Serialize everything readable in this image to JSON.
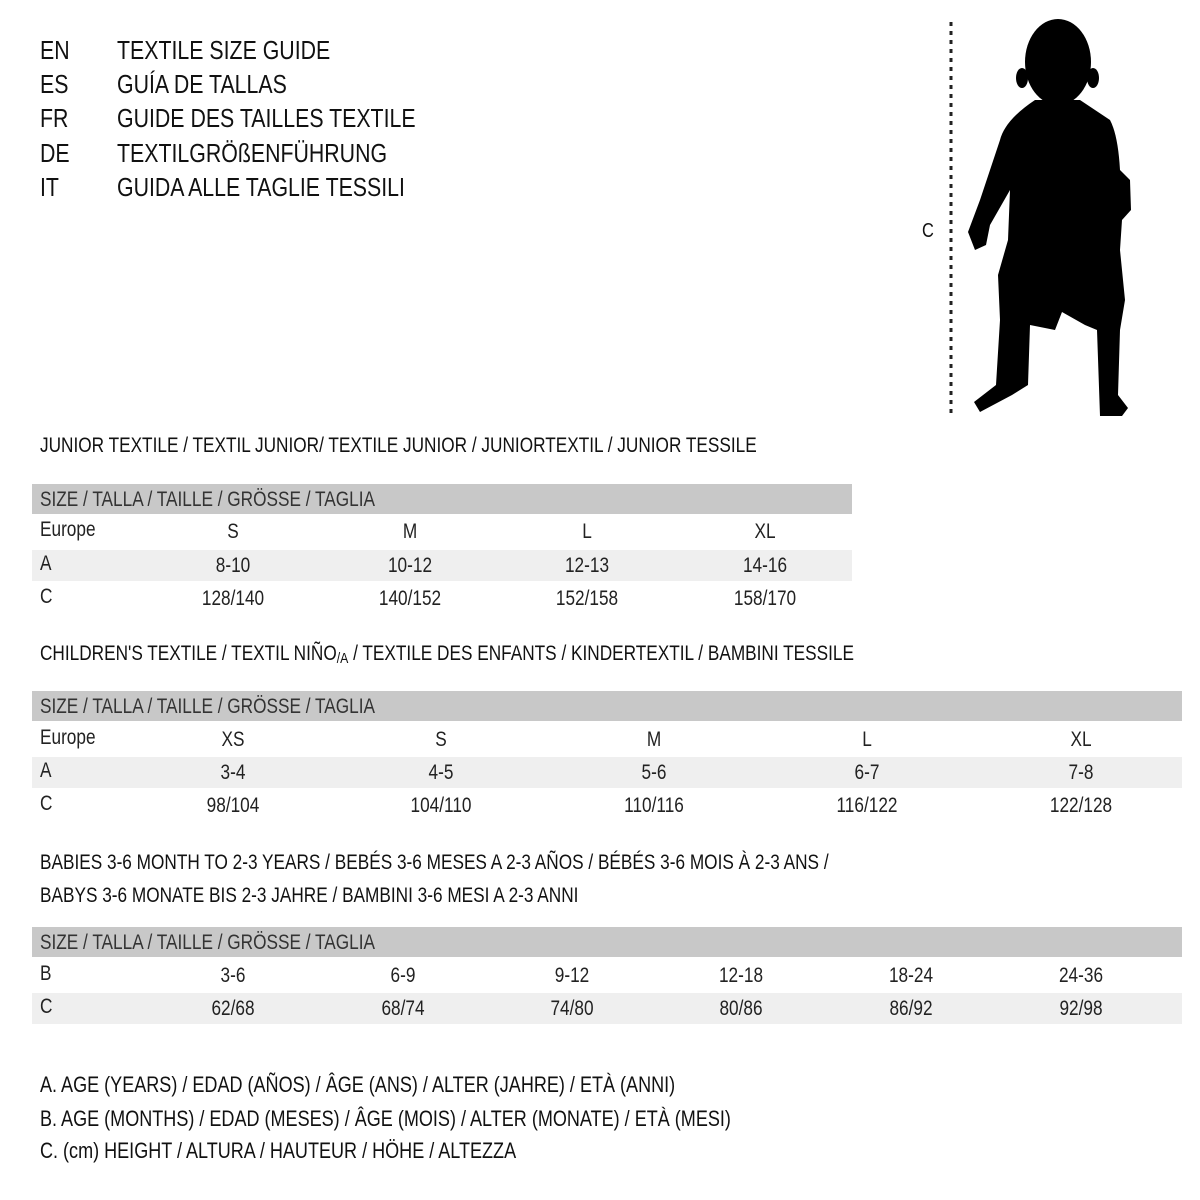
{
  "titles": [
    {
      "code": "EN",
      "text": "TEXTILE SIZE GUIDE"
    },
    {
      "code": "ES",
      "text": "GUÍA DE TALLAS"
    },
    {
      "code": "FR",
      "text": "GUIDE DES TAILLES TEXTILE"
    },
    {
      "code": "DE",
      "text": "TEXTILGRÖßENFÜHRUNG"
    },
    {
      "code": "IT",
      "text": "GUIDA ALLE TAGLIE TESSILI"
    }
  ],
  "figure": {
    "height_label": "C"
  },
  "junior": {
    "heading": "JUNIOR TEXTILE / TEXTIL JUNIOR/ TEXTILE JUNIOR / JUNIORTEXTIL / JUNIOR TESSILE",
    "bar": "SIZE / TALLA / TAILLE / GRÖSSE / TAGLIA",
    "rows": [
      {
        "label": "Europe",
        "values": [
          "S",
          "M",
          "L",
          "XL"
        ]
      },
      {
        "label": "A",
        "values": [
          "8-10",
          "10-12",
          "12-13",
          "14-16"
        ]
      },
      {
        "label": "C",
        "values": [
          "128/140",
          "140/152",
          "152/158",
          "158/170"
        ]
      }
    ]
  },
  "children": {
    "heading_pre": "CHILDREN'S TEXTILE / TEXTIL NIÑO",
    "heading_sub": "/A",
    "heading_post": " / TEXTILE DES ENFANTS / KINDERTEXTIL / BAMBINI TESSILE",
    "bar": "SIZE / TALLA / TAILLE / GRÖSSE / TAGLIA",
    "rows": [
      {
        "label": "Europe",
        "values": [
          "XS",
          "S",
          "M",
          "L",
          "XL"
        ]
      },
      {
        "label": "A",
        "values": [
          "3-4",
          "4-5",
          "5-6",
          "6-7",
          "7-8"
        ]
      },
      {
        "label": "C",
        "values": [
          "98/104",
          "104/110",
          "110/116",
          "116/122",
          "122/128"
        ]
      }
    ]
  },
  "babies": {
    "heading_1": "BABIES 3-6 MONTH TO 2-3 YEARS / BEBÉS 3-6 MESES A 2-3 AÑOS / BÉBÉS 3-6 MOIS À 2-3 ANS /",
    "heading_2": "BABYS 3-6 MONATE BIS 2-3 JAHRE / BAMBINI 3-6 MESI A 2-3 ANNI",
    "bar": "SIZE / TALLA / TAILLE / GRÖSSE / TAGLIA",
    "rows": [
      {
        "label": "B",
        "values": [
          "3-6",
          "6-9",
          "9-12",
          "12-18",
          "18-24",
          "24-36"
        ]
      },
      {
        "label": "C",
        "values": [
          "62/68",
          "68/74",
          "74/80",
          "80/86",
          "86/92",
          "92/98"
        ]
      }
    ]
  },
  "legend": [
    "A. AGE (YEARS) / EDAD (AÑOS) / ÂGE (ANS) / ALTER (JAHRE) / ETÀ (ANNI)",
    "B. AGE (MONTHS) / EDAD (MESES) / ÂGE (MOIS) / ALTER (MONATE) / ETÀ (MESI)",
    "C. (cm) HEIGHT / ALTURA / HAUTEUR / HÖHE / ALTEZZA"
  ]
}
